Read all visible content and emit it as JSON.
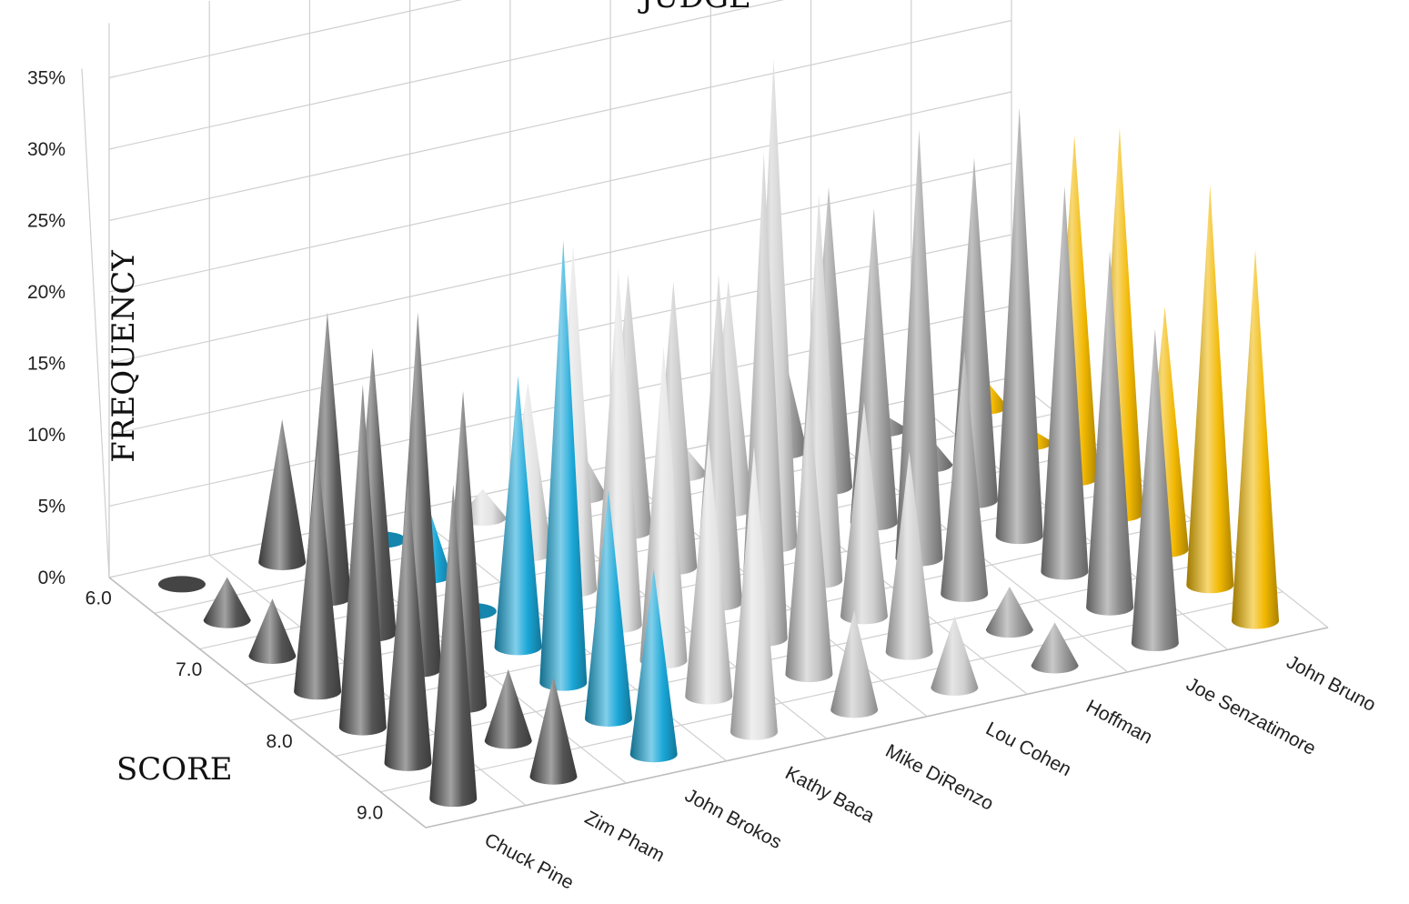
{
  "chart_data": {
    "type": "3d-cone",
    "title": "JUDGE",
    "xlabel": "JUDGE",
    "ylabel": "SCORE",
    "zlabel": "FREQUENCY",
    "judges": [
      "Chuck Pine",
      "Zim Pham",
      "John Brokos",
      "Kathy Baca",
      "Mike DiRenzo",
      "Lou Cohen",
      "Hoffman",
      "Joe Senzatimore",
      "John Bruno"
    ],
    "score_categories": [
      "6.0",
      "6.5",
      "7.0",
      "7.5",
      "8.0",
      "8.5",
      "9.0"
    ],
    "score_tick_labels": [
      "6.0",
      "7.0",
      "8.0",
      "9.0"
    ],
    "frequency_ticks": [
      "0%",
      "5%",
      "10%",
      "15%",
      "20%",
      "25%",
      "30%",
      "35%"
    ],
    "zlim": [
      0,
      35
    ],
    "series": [
      {
        "judge": "Chuck Pine",
        "color": "#555555",
        "values": [
          0,
          3,
          4,
          17,
          24,
          20,
          22
        ]
      },
      {
        "judge": "Zim Pham",
        "color": "#555555",
        "values": [
          10,
          20,
          20,
          25,
          22,
          5,
          7
        ]
      },
      {
        "judge": "John Brokos",
        "color": "#1aa7d8",
        "values": [
          0,
          5,
          0,
          19,
          31,
          16,
          13
        ]
      },
      {
        "judge": "Kathy Baca",
        "color": "#e2e2e2",
        "values": [
          2,
          12,
          24,
          25,
          22,
          18,
          20
        ]
      },
      {
        "judge": "Mike DiRenzo",
        "color": "#c4c4c4",
        "values": [
          3,
          18,
          20,
          23,
          34,
          20,
          7
        ]
      },
      {
        "judge": "Lou Cohen",
        "color": "#d0d0d0",
        "values": [
          2,
          16,
          34,
          27,
          15,
          14,
          5
        ]
      },
      {
        "judge": "Hoffman",
        "color": "#9c9c9c",
        "values": [
          7,
          21,
          22,
          30,
          17,
          3,
          3
        ]
      },
      {
        "judge": "Joe Senzatimore",
        "color": "#8e8e8e",
        "values": [
          1,
          2,
          24,
          30,
          27,
          25,
          22
        ]
      },
      {
        "judge": "John Bruno",
        "color": "#f2b800",
        "values": [
          2,
          1,
          24,
          27,
          17,
          28,
          26
        ]
      }
    ],
    "legend": "none",
    "grid": true
  }
}
